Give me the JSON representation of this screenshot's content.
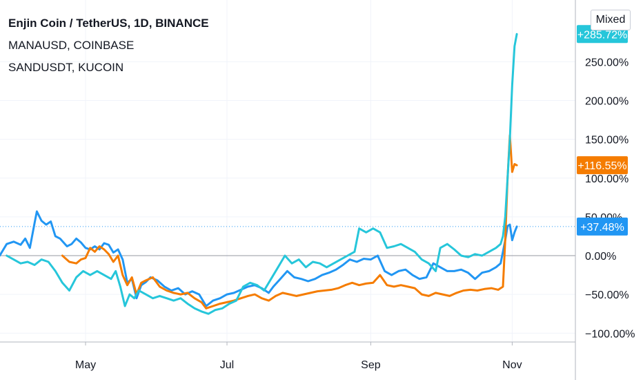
{
  "legend": {
    "line1": "Enjin Coin / TetherUS, 1D, BINANCE",
    "line2": "MANAUSD, COINBASE",
    "line3": "SANDUSDT, KUCOIN"
  },
  "controls": {
    "scale_mode": "Mixed"
  },
  "chart_data": {
    "type": "line",
    "title": "Enjin Coin / TetherUS, 1D, BINANCE",
    "ylabel": "",
    "xlabel": "",
    "y_unit": "%",
    "ylim": [
      -105,
      290
    ],
    "y_ticks": [
      250,
      200,
      150,
      100,
      50,
      0,
      -50,
      -100
    ],
    "y_tick_labels": [
      "250.00%",
      "200.00%",
      "150.00%",
      "100.00%",
      "50.00%",
      "0.00%",
      "−50.00%",
      "−100.00%"
    ],
    "x_tick_labels": [
      "May",
      "Jul",
      "Sep",
      "Nov"
    ],
    "x_tick_dates": [
      "2021-05-01",
      "2021-07-01",
      "2021-09-01",
      "2021-11-01"
    ],
    "xlim": [
      "2021-03-25",
      "2021-12-15"
    ],
    "grid": true,
    "zero_line": true,
    "series": [
      {
        "name": "Enjin Coin / TetherUS, 1D, BINANCE",
        "color": "#2196f3",
        "last_label": "+37.48%",
        "points": [
          [
            "2021-03-25",
            0
          ],
          [
            "2021-03-28",
            15
          ],
          [
            "2021-03-31",
            18
          ],
          [
            "2021-04-03",
            14
          ],
          [
            "2021-04-05",
            22
          ],
          [
            "2021-04-07",
            10
          ],
          [
            "2021-04-09",
            42
          ],
          [
            "2021-04-10",
            57
          ],
          [
            "2021-04-12",
            45
          ],
          [
            "2021-04-14",
            40
          ],
          [
            "2021-04-16",
            44
          ],
          [
            "2021-04-18",
            25
          ],
          [
            "2021-04-20",
            22
          ],
          [
            "2021-04-23",
            12
          ],
          [
            "2021-04-25",
            15
          ],
          [
            "2021-04-27",
            22
          ],
          [
            "2021-04-29",
            17
          ],
          [
            "2021-05-01",
            10
          ],
          [
            "2021-05-03",
            8
          ],
          [
            "2021-05-05",
            12
          ],
          [
            "2021-05-07",
            8
          ],
          [
            "2021-05-09",
            16
          ],
          [
            "2021-05-11",
            14
          ],
          [
            "2021-05-13",
            4
          ],
          [
            "2021-05-15",
            8
          ],
          [
            "2021-05-17",
            -5
          ],
          [
            "2021-05-19",
            -35
          ],
          [
            "2021-05-21",
            -30
          ],
          [
            "2021-05-23",
            -55
          ],
          [
            "2021-05-25",
            -38
          ],
          [
            "2021-05-27",
            -34
          ],
          [
            "2021-05-29",
            -28
          ],
          [
            "2021-06-01",
            -32
          ],
          [
            "2021-06-04",
            -40
          ],
          [
            "2021-06-07",
            -45
          ],
          [
            "2021-06-10",
            -42
          ],
          [
            "2021-06-13",
            -50
          ],
          [
            "2021-06-16",
            -46
          ],
          [
            "2021-06-19",
            -50
          ],
          [
            "2021-06-22",
            -65
          ],
          [
            "2021-06-25",
            -58
          ],
          [
            "2021-06-28",
            -55
          ],
          [
            "2021-07-01",
            -50
          ],
          [
            "2021-07-04",
            -48
          ],
          [
            "2021-07-07",
            -44
          ],
          [
            "2021-07-10",
            -40
          ],
          [
            "2021-07-13",
            -38
          ],
          [
            "2021-07-16",
            -42
          ],
          [
            "2021-07-19",
            -48
          ],
          [
            "2021-07-21",
            -40
          ],
          [
            "2021-07-24",
            -30
          ],
          [
            "2021-07-27",
            -20
          ],
          [
            "2021-07-30",
            -28
          ],
          [
            "2021-08-02",
            -30
          ],
          [
            "2021-08-05",
            -33
          ],
          [
            "2021-08-08",
            -30
          ],
          [
            "2021-08-11",
            -25
          ],
          [
            "2021-08-14",
            -22
          ],
          [
            "2021-08-17",
            -18
          ],
          [
            "2021-08-20",
            -12
          ],
          [
            "2021-08-23",
            -5
          ],
          [
            "2021-08-26",
            -8
          ],
          [
            "2021-08-29",
            -4
          ],
          [
            "2021-09-01",
            -5
          ],
          [
            "2021-09-04",
            0
          ],
          [
            "2021-09-07",
            -20
          ],
          [
            "2021-09-10",
            -25
          ],
          [
            "2021-09-13",
            -20
          ],
          [
            "2021-09-16",
            -18
          ],
          [
            "2021-09-19",
            -25
          ],
          [
            "2021-09-22",
            -30
          ],
          [
            "2021-09-25",
            -28
          ],
          [
            "2021-09-28",
            -10
          ],
          [
            "2021-10-01",
            -15
          ],
          [
            "2021-10-04",
            -20
          ],
          [
            "2021-10-07",
            -20
          ],
          [
            "2021-10-10",
            -18
          ],
          [
            "2021-10-13",
            -22
          ],
          [
            "2021-10-16",
            -30
          ],
          [
            "2021-10-19",
            -22
          ],
          [
            "2021-10-22",
            -20
          ],
          [
            "2021-10-25",
            -15
          ],
          [
            "2021-10-27",
            -10
          ],
          [
            "2021-10-28",
            5
          ],
          [
            "2021-10-29",
            20
          ],
          [
            "2021-10-30",
            38
          ],
          [
            "2021-10-31",
            40
          ],
          [
            "2021-11-01",
            20
          ],
          [
            "2021-11-02",
            30
          ],
          [
            "2021-11-03",
            37.48
          ]
        ]
      },
      {
        "name": "MANAUSD, COINBASE",
        "color": "#f57c00",
        "last_label": "+116.55%",
        "points": [
          [
            "2021-04-21",
            0
          ],
          [
            "2021-04-24",
            -8
          ],
          [
            "2021-04-27",
            -10
          ],
          [
            "2021-04-29",
            -5
          ],
          [
            "2021-05-01",
            -3
          ],
          [
            "2021-05-03",
            10
          ],
          [
            "2021-05-05",
            5
          ],
          [
            "2021-05-07",
            12
          ],
          [
            "2021-05-09",
            8
          ],
          [
            "2021-05-11",
            2
          ],
          [
            "2021-05-13",
            -8
          ],
          [
            "2021-05-15",
            0
          ],
          [
            "2021-05-17",
            -25
          ],
          [
            "2021-05-19",
            -38
          ],
          [
            "2021-05-21",
            -28
          ],
          [
            "2021-05-23",
            -50
          ],
          [
            "2021-05-25",
            -35
          ],
          [
            "2021-05-27",
            -32
          ],
          [
            "2021-05-30",
            -28
          ],
          [
            "2021-06-02",
            -40
          ],
          [
            "2021-06-05",
            -45
          ],
          [
            "2021-06-08",
            -48
          ],
          [
            "2021-06-11",
            -50
          ],
          [
            "2021-06-14",
            -48
          ],
          [
            "2021-06-17",
            -55
          ],
          [
            "2021-06-20",
            -60
          ],
          [
            "2021-06-22",
            -68
          ],
          [
            "2021-06-25",
            -65
          ],
          [
            "2021-06-28",
            -62
          ],
          [
            "2021-07-01",
            -60
          ],
          [
            "2021-07-04",
            -58
          ],
          [
            "2021-07-07",
            -55
          ],
          [
            "2021-07-10",
            -52
          ],
          [
            "2021-07-13",
            -50
          ],
          [
            "2021-07-16",
            -55
          ],
          [
            "2021-07-19",
            -58
          ],
          [
            "2021-07-22",
            -52
          ],
          [
            "2021-07-25",
            -48
          ],
          [
            "2021-07-28",
            -50
          ],
          [
            "2021-07-31",
            -52
          ],
          [
            "2021-08-03",
            -50
          ],
          [
            "2021-08-06",
            -48
          ],
          [
            "2021-08-09",
            -46
          ],
          [
            "2021-08-12",
            -45
          ],
          [
            "2021-08-15",
            -44
          ],
          [
            "2021-08-18",
            -42
          ],
          [
            "2021-08-21",
            -38
          ],
          [
            "2021-08-24",
            -35
          ],
          [
            "2021-08-27",
            -38
          ],
          [
            "2021-08-30",
            -36
          ],
          [
            "2021-09-02",
            -35
          ],
          [
            "2021-09-05",
            -25
          ],
          [
            "2021-09-08",
            -38
          ],
          [
            "2021-09-11",
            -40
          ],
          [
            "2021-09-14",
            -38
          ],
          [
            "2021-09-17",
            -40
          ],
          [
            "2021-09-20",
            -42
          ],
          [
            "2021-09-23",
            -50
          ],
          [
            "2021-09-26",
            -52
          ],
          [
            "2021-09-29",
            -48
          ],
          [
            "2021-10-02",
            -50
          ],
          [
            "2021-10-05",
            -52
          ],
          [
            "2021-10-08",
            -48
          ],
          [
            "2021-10-11",
            -45
          ],
          [
            "2021-10-14",
            -44
          ],
          [
            "2021-10-17",
            -45
          ],
          [
            "2021-10-20",
            -43
          ],
          [
            "2021-10-23",
            -42
          ],
          [
            "2021-10-26",
            -44
          ],
          [
            "2021-10-28",
            -40
          ],
          [
            "2021-10-29",
            20
          ],
          [
            "2021-10-30",
            100
          ],
          [
            "2021-10-31",
            155
          ],
          [
            "2021-11-01",
            108
          ],
          [
            "2021-11-02",
            118
          ],
          [
            "2021-11-03",
            116.55
          ]
        ]
      },
      {
        "name": "SANDUSDT, KUCOIN",
        "color": "#26c6da",
        "last_label": "+285.72%",
        "points": [
          [
            "2021-03-28",
            0
          ],
          [
            "2021-03-31",
            -5
          ],
          [
            "2021-04-03",
            -10
          ],
          [
            "2021-04-06",
            -8
          ],
          [
            "2021-04-09",
            -12
          ],
          [
            "2021-04-12",
            -5
          ],
          [
            "2021-04-15",
            -8
          ],
          [
            "2021-04-18",
            -20
          ],
          [
            "2021-04-21",
            -35
          ],
          [
            "2021-04-24",
            -45
          ],
          [
            "2021-04-27",
            -28
          ],
          [
            "2021-04-30",
            -20
          ],
          [
            "2021-05-03",
            -25
          ],
          [
            "2021-05-06",
            -20
          ],
          [
            "2021-05-09",
            -25
          ],
          [
            "2021-05-12",
            -30
          ],
          [
            "2021-05-14",
            -20
          ],
          [
            "2021-05-16",
            -40
          ],
          [
            "2021-05-18",
            -65
          ],
          [
            "2021-05-20",
            -50
          ],
          [
            "2021-05-22",
            -55
          ],
          [
            "2021-05-24",
            -45
          ],
          [
            "2021-05-27",
            -50
          ],
          [
            "2021-05-30",
            -55
          ],
          [
            "2021-06-02",
            -52
          ],
          [
            "2021-06-05",
            -55
          ],
          [
            "2021-06-08",
            -58
          ],
          [
            "2021-06-11",
            -55
          ],
          [
            "2021-06-14",
            -62
          ],
          [
            "2021-06-17",
            -68
          ],
          [
            "2021-06-20",
            -72
          ],
          [
            "2021-06-23",
            -75
          ],
          [
            "2021-06-26",
            -70
          ],
          [
            "2021-06-29",
            -68
          ],
          [
            "2021-07-02",
            -62
          ],
          [
            "2021-07-05",
            -58
          ],
          [
            "2021-07-08",
            -40
          ],
          [
            "2021-07-11",
            -35
          ],
          [
            "2021-07-14",
            -38
          ],
          [
            "2021-07-17",
            -45
          ],
          [
            "2021-07-20",
            -30
          ],
          [
            "2021-07-23",
            -15
          ],
          [
            "2021-07-26",
            0
          ],
          [
            "2021-07-29",
            -10
          ],
          [
            "2021-08-01",
            -5
          ],
          [
            "2021-08-04",
            -15
          ],
          [
            "2021-08-07",
            -8
          ],
          [
            "2021-08-10",
            -10
          ],
          [
            "2021-08-13",
            -15
          ],
          [
            "2021-08-16",
            -10
          ],
          [
            "2021-08-19",
            -5
          ],
          [
            "2021-08-22",
            0
          ],
          [
            "2021-08-25",
            5
          ],
          [
            "2021-08-27",
            35
          ],
          [
            "2021-08-30",
            30
          ],
          [
            "2021-09-02",
            35
          ],
          [
            "2021-09-05",
            30
          ],
          [
            "2021-09-08",
            10
          ],
          [
            "2021-09-11",
            12
          ],
          [
            "2021-09-14",
            15
          ],
          [
            "2021-09-17",
            10
          ],
          [
            "2021-09-20",
            5
          ],
          [
            "2021-09-23",
            -5
          ],
          [
            "2021-09-26",
            -10
          ],
          [
            "2021-09-29",
            -20
          ],
          [
            "2021-10-01",
            10
          ],
          [
            "2021-10-04",
            15
          ],
          [
            "2021-10-07",
            8
          ],
          [
            "2021-10-10",
            0
          ],
          [
            "2021-10-13",
            -2
          ],
          [
            "2021-10-16",
            2
          ],
          [
            "2021-10-19",
            0
          ],
          [
            "2021-10-22",
            5
          ],
          [
            "2021-10-25",
            10
          ],
          [
            "2021-10-27",
            15
          ],
          [
            "2021-10-28",
            25
          ],
          [
            "2021-10-29",
            50
          ],
          [
            "2021-10-30",
            100
          ],
          [
            "2021-10-31",
            150
          ],
          [
            "2021-11-01",
            220
          ],
          [
            "2021-11-02",
            270
          ],
          [
            "2021-11-03",
            285.72
          ]
        ]
      }
    ],
    "reference_line": {
      "value": 37.48,
      "style": "dotted",
      "color": "#2196f3"
    }
  }
}
